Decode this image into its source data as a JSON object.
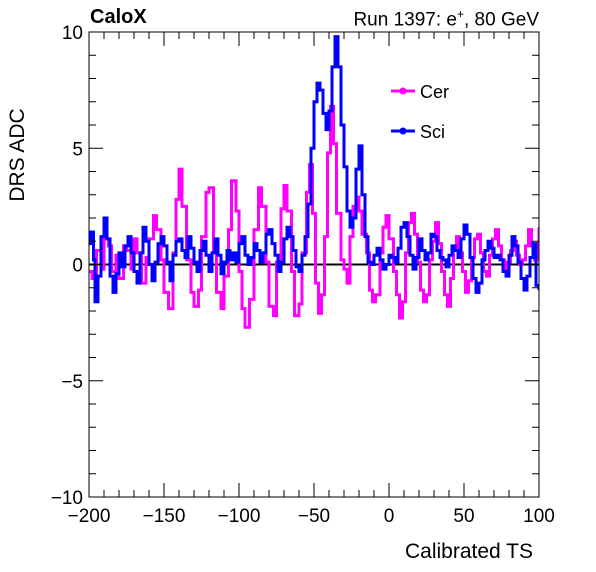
{
  "header": {
    "experiment": "CaloX",
    "run_prefix": "Run 1397: e",
    "run_sup": "+",
    "run_suffix": ", 80 GeV"
  },
  "chart_data": {
    "type": "line",
    "xlabel": "Calibrated TS",
    "ylabel": "DRS ADC",
    "xlim": [
      -200,
      100
    ],
    "ylim": [
      -10,
      10
    ],
    "x_ticks": [
      -200,
      -150,
      -100,
      -50,
      0,
      50,
      100
    ],
    "x_tick_labels": [
      "−200",
      "−150",
      "−100",
      "−50",
      "0",
      "50",
      "100"
    ],
    "y_ticks": [
      -10,
      -5,
      0,
      5,
      10
    ],
    "y_tick_labels": [
      "−10",
      "−5",
      "0",
      "5",
      "10"
    ],
    "grid": false,
    "legend_position": "top-right",
    "baseline": 0,
    "series": [
      {
        "name": "Cer",
        "color": "#ff00ff",
        "style": "step",
        "points": [
          [
            -200,
            -0.3
          ],
          [
            -198,
            -0.6
          ],
          [
            -195,
            0.6
          ],
          [
            -192,
            -0.2
          ],
          [
            -190,
            1.1
          ],
          [
            -187,
            0.8
          ],
          [
            -185,
            -0.3
          ],
          [
            -182,
            0.4
          ],
          [
            -180,
            -0.6
          ],
          [
            -177,
            0.8
          ],
          [
            -175,
            0.6
          ],
          [
            -172,
            -0.2
          ],
          [
            -170,
            1.1
          ],
          [
            -168,
            0.5
          ],
          [
            -165,
            -0.8
          ],
          [
            -162,
            0.3
          ],
          [
            -160,
            1.1
          ],
          [
            -157,
            2.1
          ],
          [
            -155,
            1.5
          ],
          [
            -152,
            0.2
          ],
          [
            -150,
            -1.2
          ],
          [
            -147,
            -1.9
          ],
          [
            -144,
            0.5
          ],
          [
            -142,
            2.8
          ],
          [
            -140,
            4.1
          ],
          [
            -138,
            2.5
          ],
          [
            -135,
            0.2
          ],
          [
            -132,
            -1.2
          ],
          [
            -130,
            -1.8
          ],
          [
            -127,
            -1.1
          ],
          [
            -125,
            1.2
          ],
          [
            -122,
            3.1
          ],
          [
            -120,
            3.3
          ],
          [
            -117,
            0.5
          ],
          [
            -115,
            -1.2
          ],
          [
            -112,
            -1.9
          ],
          [
            -110,
            -0.5
          ],
          [
            -107,
            1.5
          ],
          [
            -105,
            3.6
          ],
          [
            -102,
            2.3
          ],
          [
            -100,
            -0.3
          ],
          [
            -98,
            -1.9
          ],
          [
            -96,
            -2.7
          ],
          [
            -93,
            -1.5
          ],
          [
            -90,
            1.5
          ],
          [
            -87,
            3.3
          ],
          [
            -85,
            2.5
          ],
          [
            -82,
            0.1
          ],
          [
            -80,
            -1.8
          ],
          [
            -77,
            -2.2
          ],
          [
            -75,
            0.1
          ],
          [
            -72,
            2.4
          ],
          [
            -70,
            3.4
          ],
          [
            -68,
            2.3
          ],
          [
            -65,
            -0.3
          ],
          [
            -63,
            -2.2
          ],
          [
            -60,
            -1.7
          ],
          [
            -58,
            0.5
          ],
          [
            -55,
            3.1
          ],
          [
            -53,
            4.3
          ],
          [
            -51,
            2.2
          ],
          [
            -49,
            -0.8
          ],
          [
            -47,
            -2.1
          ],
          [
            -45,
            -1.3
          ],
          [
            -43,
            1.2
          ],
          [
            -41,
            4.8
          ],
          [
            -39,
            6.8
          ],
          [
            -37,
            5.2
          ],
          [
            -35,
            2.2
          ],
          [
            -32,
            0.2
          ],
          [
            -30,
            -0.2
          ],
          [
            -28,
            -0.8
          ],
          [
            -26,
            1.2
          ],
          [
            -24,
            2.5
          ],
          [
            -22,
            2.9
          ],
          [
            -20,
            2.3
          ],
          [
            -18,
            1.3
          ],
          [
            -15,
            0.5
          ],
          [
            -13,
            -1.1
          ],
          [
            -11,
            -1.6
          ],
          [
            -9,
            -1.3
          ],
          [
            -6,
            0.5
          ],
          [
            -4,
            1.6
          ],
          [
            -2,
            2.1
          ],
          [
            0,
            1.1
          ],
          [
            3,
            -0.3
          ],
          [
            5,
            -1.3
          ],
          [
            7,
            -2.3
          ],
          [
            9,
            -1.6
          ],
          [
            11,
            0.5
          ],
          [
            13,
            1.8
          ],
          [
            15,
            2.2
          ],
          [
            17,
            1.3
          ],
          [
            19,
            0.1
          ],
          [
            21,
            -1.1
          ],
          [
            23,
            -1.6
          ],
          [
            25,
            -1.3
          ],
          [
            27,
            0.2
          ],
          [
            29,
            1.0
          ],
          [
            31,
            1.8
          ],
          [
            33,
            0.9
          ],
          [
            35,
            -0.3
          ],
          [
            37,
            -1.3
          ],
          [
            39,
            -1.8
          ],
          [
            41,
            -0.6
          ],
          [
            43,
            0.6
          ],
          [
            45,
            1.2
          ],
          [
            47,
            0.5
          ],
          [
            49,
            -0.3
          ],
          [
            51,
            -1.2
          ],
          [
            53,
            -0.7
          ],
          [
            55,
            0.3
          ],
          [
            57,
            1.1
          ],
          [
            59,
            1.3
          ],
          [
            61,
            0.5
          ],
          [
            63,
            -0.3
          ],
          [
            65,
            -0.5
          ],
          [
            67,
            0.4
          ],
          [
            69,
            1.1
          ],
          [
            71,
            1.5
          ],
          [
            73,
            0.8
          ],
          [
            75,
            0.2
          ],
          [
            77,
            -0.2
          ],
          [
            79,
            0.1
          ],
          [
            81,
            0.6
          ],
          [
            83,
            1.0
          ],
          [
            85,
            0.4
          ],
          [
            87,
            0.0
          ],
          [
            89,
            0.2
          ],
          [
            91,
            0.8
          ],
          [
            93,
            1.5
          ],
          [
            95,
            0.8
          ],
          [
            97,
            0.2
          ],
          [
            100,
            1.6
          ]
        ]
      },
      {
        "name": "Sci",
        "color": "#0000ff",
        "style": "step",
        "points": [
          [
            -200,
            0.9
          ],
          [
            -199,
            1.4
          ],
          [
            -197,
            0.2
          ],
          [
            -196,
            -1.6
          ],
          [
            -194,
            -0.5
          ],
          [
            -192,
            1.2
          ],
          [
            -190,
            2.0
          ],
          [
            -188,
            1.1
          ],
          [
            -186,
            -0.5
          ],
          [
            -184,
            -1.2
          ],
          [
            -182,
            -0.4
          ],
          [
            -180,
            0.5
          ],
          [
            -178,
            -0.1
          ],
          [
            -176,
            0.8
          ],
          [
            -174,
            1.2
          ],
          [
            -172,
            0.5
          ],
          [
            -170,
            -0.3
          ],
          [
            -168,
            -0.8
          ],
          [
            -166,
            0.5
          ],
          [
            -164,
            1.6
          ],
          [
            -162,
            1.0
          ],
          [
            -160,
            0.0
          ],
          [
            -158,
            -0.7
          ],
          [
            -156,
            0.1
          ],
          [
            -154,
            0.9
          ],
          [
            -152,
            1.2
          ],
          [
            -150,
            0.8
          ],
          [
            -148,
            0.1
          ],
          [
            -146,
            -0.7
          ],
          [
            -144,
            0.4
          ],
          [
            -142,
            1.0
          ],
          [
            -140,
            1.1
          ],
          [
            -138,
            0.6
          ],
          [
            -136,
            0.3
          ],
          [
            -134,
            1.2
          ],
          [
            -132,
            0.7
          ],
          [
            -130,
            0.1
          ],
          [
            -128,
            -0.3
          ],
          [
            -126,
            0.6
          ],
          [
            -124,
            1.0
          ],
          [
            -122,
            0.4
          ],
          [
            -120,
            -0.3
          ],
          [
            -118,
            0.5
          ],
          [
            -116,
            1.1
          ],
          [
            -114,
            0.4
          ],
          [
            -112,
            -0.4
          ],
          [
            -110,
            0.1
          ],
          [
            -108,
            0.6
          ],
          [
            -106,
            0.2
          ],
          [
            -104,
            0.5
          ],
          [
            -102,
            0.1
          ],
          [
            -100,
            0.9
          ],
          [
            -98,
            1.2
          ],
          [
            -96,
            0.4
          ],
          [
            -94,
            0.0
          ],
          [
            -92,
            0.3
          ],
          [
            -90,
            0.9
          ],
          [
            -88,
            0.6
          ],
          [
            -86,
            0.1
          ],
          [
            -84,
            0.5
          ],
          [
            -82,
            1.3
          ],
          [
            -80,
            1.5
          ],
          [
            -78,
            0.9
          ],
          [
            -76,
            0.4
          ],
          [
            -74,
            -0.3
          ],
          [
            -72,
            0.1
          ],
          [
            -70,
            1.1
          ],
          [
            -68,
            1.6
          ],
          [
            -66,
            1.2
          ],
          [
            -64,
            0.6
          ],
          [
            -62,
            -0.1
          ],
          [
            -60,
            -0.3
          ],
          [
            -58,
            0.4
          ],
          [
            -56,
            1.2
          ],
          [
            -54,
            2.6
          ],
          [
            -52,
            5.0
          ],
          [
            -50,
            7.0
          ],
          [
            -48,
            7.8
          ],
          [
            -46,
            7.5
          ],
          [
            -44,
            6.5
          ],
          [
            -42,
            5.8
          ],
          [
            -40,
            6.6
          ],
          [
            -38,
            8.5
          ],
          [
            -36,
            9.8
          ],
          [
            -34,
            8.5
          ],
          [
            -32,
            6.0
          ],
          [
            -30,
            4.2
          ],
          [
            -28,
            2.3
          ],
          [
            -26,
            1.6
          ],
          [
            -24,
            2.0
          ],
          [
            -22,
            4.1
          ],
          [
            -20,
            5.1
          ],
          [
            -18,
            3.0
          ],
          [
            -16,
            1.2
          ],
          [
            -14,
            0.1
          ],
          [
            -12,
            0.0
          ],
          [
            -10,
            0.4
          ],
          [
            -8,
            0.7
          ],
          [
            -6,
            0.2
          ],
          [
            -4,
            -0.2
          ],
          [
            -2,
            0.0
          ],
          [
            0,
            0.4
          ],
          [
            2,
            0.3
          ],
          [
            4,
            0.1
          ],
          [
            6,
            0.7
          ],
          [
            8,
            1.6
          ],
          [
            10,
            1.8
          ],
          [
            12,
            1.2
          ],
          [
            14,
            0.4
          ],
          [
            16,
            -0.2
          ],
          [
            18,
            0.3
          ],
          [
            20,
            1.1
          ],
          [
            22,
            0.6
          ],
          [
            24,
            0.2
          ],
          [
            26,
            0.5
          ],
          [
            28,
            1.3
          ],
          [
            30,
            1.2
          ],
          [
            32,
            0.6
          ],
          [
            34,
            0.3
          ],
          [
            36,
            0.2
          ],
          [
            38,
            -0.1
          ],
          [
            40,
            0.4
          ],
          [
            42,
            0.8
          ],
          [
            44,
            0.6
          ],
          [
            46,
            0.3
          ],
          [
            48,
            1.1
          ],
          [
            50,
            1.7
          ],
          [
            52,
            1.3
          ],
          [
            54,
            0.3
          ],
          [
            56,
            -0.6
          ],
          [
            58,
            -1.2
          ],
          [
            60,
            -0.8
          ],
          [
            62,
            0.2
          ],
          [
            64,
            0.6
          ],
          [
            66,
            1.0
          ],
          [
            68,
            0.7
          ],
          [
            70,
            0.3
          ],
          [
            72,
            0.4
          ],
          [
            74,
            0.2
          ],
          [
            76,
            -0.3
          ],
          [
            78,
            -0.5
          ],
          [
            80,
            0.4
          ],
          [
            82,
            1.2
          ],
          [
            84,
            0.8
          ],
          [
            86,
            0.1
          ],
          [
            88,
            -0.6
          ],
          [
            90,
            -1.1
          ],
          [
            92,
            -0.5
          ],
          [
            94,
            0.3
          ],
          [
            96,
            0.9
          ],
          [
            98,
            -0.9
          ],
          [
            100,
            -1.1
          ]
        ]
      }
    ]
  }
}
